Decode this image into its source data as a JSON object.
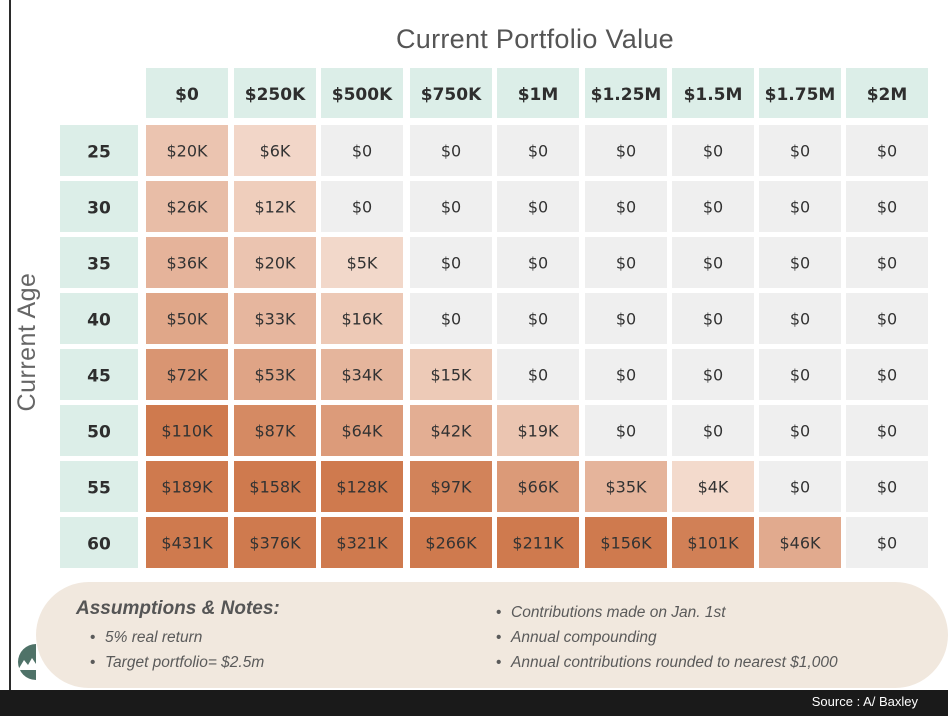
{
  "chart_data": {
    "type": "heatmap",
    "title": "Current Portfolio Value",
    "xlabel": "Current Portfolio Value",
    "ylabel": "Current Age",
    "x_categories": [
      "$0",
      "$250K",
      "$500K",
      "$750K",
      "$1M",
      "$1.25M",
      "$1.5M",
      "$1.75M",
      "$2M"
    ],
    "y_categories": [
      "25",
      "30",
      "35",
      "40",
      "45",
      "50",
      "55",
      "60"
    ],
    "cell_labels": [
      [
        "$20K",
        "$6K",
        "$0",
        "$0",
        "$0",
        "$0",
        "$0",
        "$0",
        "$0"
      ],
      [
        "$26K",
        "$12K",
        "$0",
        "$0",
        "$0",
        "$0",
        "$0",
        "$0",
        "$0"
      ],
      [
        "$36K",
        "$20K",
        "$5K",
        "$0",
        "$0",
        "$0",
        "$0",
        "$0",
        "$0"
      ],
      [
        "$50K",
        "$33K",
        "$16K",
        "$0",
        "$0",
        "$0",
        "$0",
        "$0",
        "$0"
      ],
      [
        "$72K",
        "$53K",
        "$34K",
        "$15K",
        "$0",
        "$0",
        "$0",
        "$0",
        "$0"
      ],
      [
        "$110K",
        "$87K",
        "$64K",
        "$42K",
        "$19K",
        "$0",
        "$0",
        "$0",
        "$0"
      ],
      [
        "$189K",
        "$158K",
        "$128K",
        "$97K",
        "$66K",
        "$35K",
        "$4K",
        "$0",
        "$0"
      ],
      [
        "$431K",
        "$376K",
        "$321K",
        "$266K",
        "$211K",
        "$156K",
        "$101K",
        "$46K",
        "$0"
      ]
    ],
    "values": [
      [
        20,
        6,
        0,
        0,
        0,
        0,
        0,
        0,
        0
      ],
      [
        26,
        12,
        0,
        0,
        0,
        0,
        0,
        0,
        0
      ],
      [
        36,
        20,
        5,
        0,
        0,
        0,
        0,
        0,
        0
      ],
      [
        50,
        33,
        16,
        0,
        0,
        0,
        0,
        0,
        0
      ],
      [
        72,
        53,
        34,
        15,
        0,
        0,
        0,
        0,
        0
      ],
      [
        110,
        87,
        64,
        42,
        19,
        0,
        0,
        0,
        0
      ],
      [
        189,
        158,
        128,
        97,
        66,
        35,
        4,
        0,
        0
      ],
      [
        431,
        376,
        321,
        266,
        211,
        156,
        101,
        46,
        0
      ]
    ],
    "value_unit": "thousands of dollars",
    "colors": {
      "header_fill": "#dceee8",
      "zero_fill": "#efefef",
      "low_fill": "#f7e4da",
      "high_fill": "#cf7a4e",
      "text": "#333333",
      "header_text": "#2e2e2e"
    },
    "legend": "none",
    "grid": false
  },
  "notes": {
    "title": "Assumptions & Notes:",
    "left_items": [
      "5% real return",
      "Target portfolio= $2.5m"
    ],
    "right_items": [
      "Contributions made on Jan. 1st",
      "Annual compounding",
      "Annual contributions rounded to nearest $1,000"
    ]
  },
  "source": "Source : A/ Baxley"
}
